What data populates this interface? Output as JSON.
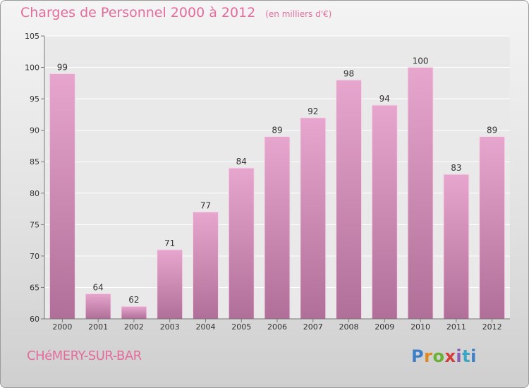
{
  "chart_data": {
    "type": "bar",
    "title": "Charges de Personnel 2000 à 2012",
    "subtitle": "(en milliers d'€)",
    "categories": [
      "2000",
      "2001",
      "2002",
      "2003",
      "2004",
      "2005",
      "2006",
      "2007",
      "2008",
      "2009",
      "2010",
      "2011",
      "2012"
    ],
    "values": [
      99,
      64,
      62,
      71,
      77,
      84,
      89,
      92,
      98,
      94,
      100,
      83,
      89
    ],
    "ylim": [
      60,
      105
    ],
    "yticks": [
      60,
      65,
      70,
      75,
      80,
      85,
      90,
      95,
      100,
      105
    ],
    "xlabel": "",
    "ylabel": "",
    "grid": true,
    "bar_color_top": "#e7a6cd",
    "bar_color_bottom": "#b06f98"
  },
  "footer": {
    "place_name": "CHéMERY-SUR-BAR",
    "brand": "Proxiti"
  }
}
